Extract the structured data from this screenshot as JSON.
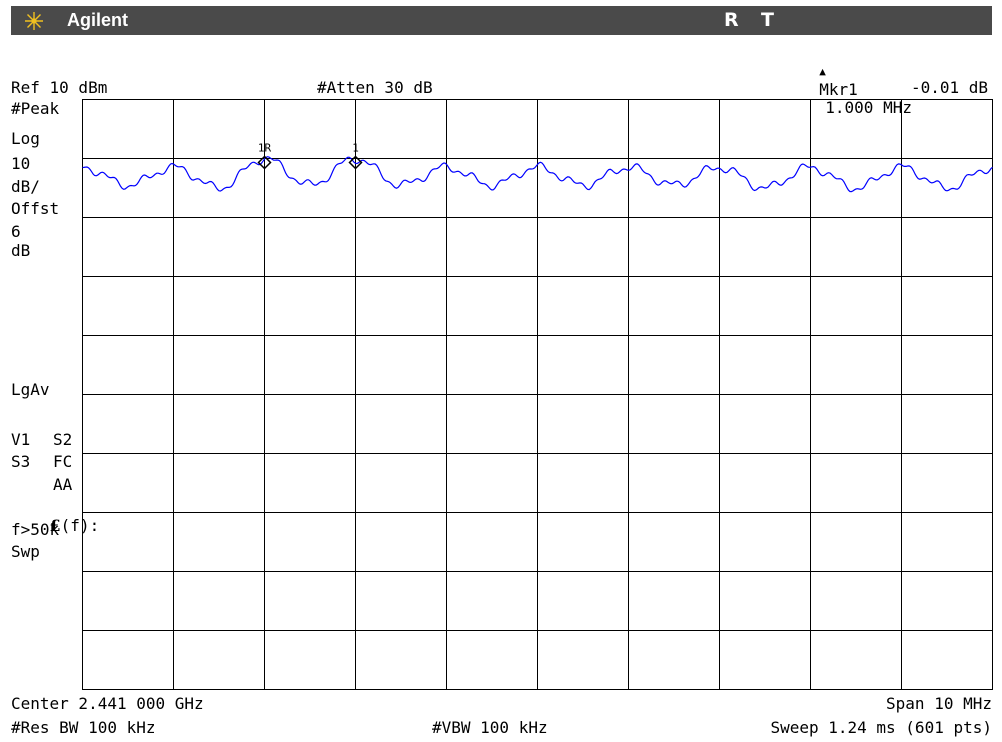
{
  "header": {
    "brand": "Agilent",
    "indicator_r": "R",
    "indicator_t": "T"
  },
  "marker_readout": {
    "symbol": "▲",
    "label": "Mkr1",
    "frequency": "1.000 MHz",
    "amplitude": "-0.01 dB"
  },
  "settings": {
    "ref_level": "Ref 10 dBm",
    "attenuation": "#Atten 30 dB"
  },
  "left_panel": {
    "detector": "#Peak",
    "scale_type": "Log",
    "scale_value": "10",
    "scale_unit": "dB/",
    "offset_label": "Offst",
    "offset_value": "6",
    "offset_unit": "dB",
    "average_mode": "LgAv",
    "trace_v1": "V1",
    "trace_s2": "S2",
    "trace_s3": "S3",
    "trace_fc": "FC",
    "trace_aa": "AA",
    "fn_prefix": "£",
    "fn_suffix": "(f):",
    "fn_value": "f>50k",
    "sweep_label": "Swp"
  },
  "footer": {
    "center": "Center 2.441 000 GHz",
    "span": "Span 10 MHz",
    "res_bw": "#Res BW 100 kHz",
    "vbw": "#VBW 100 kHz",
    "sweep": "Sweep 1.24 ms (601 pts)"
  },
  "markers": [
    {
      "label": "1R",
      "freq_offset_mhz": -3.0,
      "amplitude_dbm": 0.0
    },
    {
      "label": "1",
      "freq_offset_mhz": -2.0,
      "amplitude_dbm": 0.0
    }
  ],
  "chart_data": {
    "type": "line",
    "title": "",
    "xlabel": "",
    "ylabel": "",
    "x_range_mhz_offset": [
      -5,
      5
    ],
    "y_range_dbm": [
      -90,
      10
    ],
    "grid": true,
    "trace_color": "#0000ff",
    "series": [
      {
        "x_mhz_offset": [
          -5.0,
          -4.5,
          -4.0,
          -3.5,
          -3.0,
          -2.5,
          -2.0,
          -1.5,
          -1.0,
          -0.5,
          0.0,
          0.5,
          1.0,
          1.5,
          2.0,
          2.5,
          3.0,
          3.5,
          4.0,
          4.5,
          5.0
        ],
        "y_dbm": [
          -1.5,
          -4.5,
          -1.5,
          -5.0,
          0.0,
          -4.5,
          0.0,
          -4.5,
          -1.5,
          -4.5,
          -1.5,
          -4.5,
          -1.5,
          -4.5,
          -1.5,
          -5.0,
          -1.5,
          -5.0,
          -1.5,
          -5.0,
          -1.5
        ]
      }
    ]
  }
}
